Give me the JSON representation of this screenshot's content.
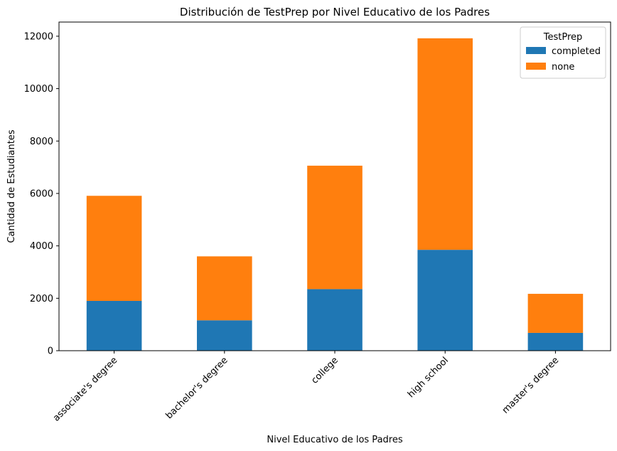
{
  "chart_data": {
    "type": "bar",
    "stacked": true,
    "title": "Distribución de TestPrep por Nivel Educativo de los Padres",
    "xlabel": "Nivel Educativo de los Padres",
    "ylabel": "Cantidad de Estudiantes",
    "categories": [
      "associate's degree",
      "bachelor's degree",
      "college",
      "high school",
      "master's degree"
    ],
    "series": [
      {
        "name": "completed",
        "color": "#1f77b4",
        "values": [
          1900,
          1160,
          2350,
          3850,
          680
        ]
      },
      {
        "name": "none",
        "color": "#ff7f0e",
        "values": [
          4010,
          2440,
          4710,
          8070,
          1490
        ]
      }
    ],
    "ylim": [
      0,
      12540
    ],
    "yticks": [
      0,
      2000,
      4000,
      6000,
      8000,
      10000,
      12000
    ],
    "grid": false,
    "legend": {
      "title": "TestPrep",
      "position": "top-right"
    }
  }
}
